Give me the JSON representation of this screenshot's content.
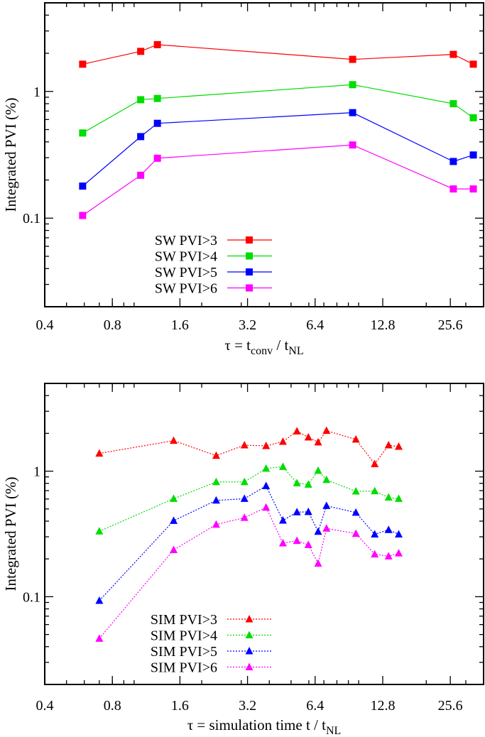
{
  "chart_data": [
    {
      "type": "line",
      "ylabel": "Integrated PVI (%)",
      "xlabel": {
        "main": "τ = t",
        "sub1": "conv",
        "mid": " /  t",
        "sub2": "NL"
      },
      "xscale": "log2",
      "yscale": "log10",
      "xlim": [
        0.4,
        36
      ],
      "ylim": [
        0.02,
        5
      ],
      "xticks": [
        "0.4",
        "0.8",
        "1.6",
        "3.2",
        "6.4",
        "12.8",
        "25.6"
      ],
      "yticks": [
        "0.1",
        "1"
      ],
      "legend_position": "bottom-left",
      "line_style": "solid",
      "marker": "square",
      "x": [
        0.59,
        1.07,
        1.27,
        9.4,
        26.4,
        32.4
      ],
      "series": [
        {
          "name": "SW PVI>3",
          "color": "#ff0000",
          "values": [
            1.64,
            2.07,
            2.34,
            1.79,
            1.96,
            1.64
          ]
        },
        {
          "name": "SW PVI>4",
          "color": "#00dd00",
          "values": [
            0.47,
            0.86,
            0.88,
            1.13,
            0.8,
            0.62
          ]
        },
        {
          "name": "SW PVI>5",
          "color": "#0000ff",
          "values": [
            0.179,
            0.44,
            0.56,
            0.68,
            0.28,
            0.315
          ]
        },
        {
          "name": "SW PVI>6",
          "color": "#ff00ff",
          "values": [
            0.105,
            0.218,
            0.297,
            0.378,
            0.17,
            0.17
          ]
        }
      ]
    },
    {
      "type": "line",
      "ylabel": "Integrated PVI (%)",
      "xlabel": {
        "main": "τ = simulation time t",
        "sub1": "",
        "mid": " /  t",
        "sub2": "NL"
      },
      "xscale": "log2",
      "yscale": "log10",
      "xlim": [
        0.4,
        36
      ],
      "ylim": [
        0.02,
        5
      ],
      "xticks": [
        "0.4",
        "0.8",
        "1.6",
        "3.2",
        "6.4",
        "12.8",
        "25.6"
      ],
      "yticks": [
        "0.1",
        "1"
      ],
      "legend_position": "bottom-left",
      "line_style": "dotted",
      "marker": "triangle",
      "x": [
        0.7,
        1.5,
        2.32,
        3.1,
        3.87,
        4.6,
        5.31,
        5.97,
        6.6,
        7.19,
        9.72,
        11.79,
        13.59,
        15.08
      ],
      "series": [
        {
          "name": "SIM PVI>3",
          "color": "#ff0000",
          "values": [
            1.385,
            1.75,
            1.33,
            1.61,
            1.59,
            1.72,
            2.08,
            1.86,
            1.7,
            2.1,
            1.79,
            1.14,
            1.61,
            1.57
          ]
        },
        {
          "name": "SIM PVI>4",
          "color": "#00dd00",
          "values": [
            0.332,
            0.603,
            0.821,
            0.821,
            1.05,
            1.085,
            0.804,
            0.783,
            1.01,
            0.853,
            0.691,
            0.694,
            0.618,
            0.603
          ]
        },
        {
          "name": "SIM PVI>5",
          "color": "#0000ff",
          "values": [
            0.093,
            0.403,
            0.585,
            0.603,
            0.763,
            0.405,
            0.472,
            0.474,
            0.33,
            0.53,
            0.468,
            0.314,
            0.341,
            0.314
          ]
        },
        {
          "name": "SIM PVI>6",
          "color": "#ff00ff",
          "values": [
            0.0464,
            0.236,
            0.376,
            0.426,
            0.514,
            0.267,
            0.279,
            0.259,
            0.184,
            0.35,
            0.318,
            0.218,
            0.21,
            0.222
          ]
        }
      ]
    }
  ]
}
